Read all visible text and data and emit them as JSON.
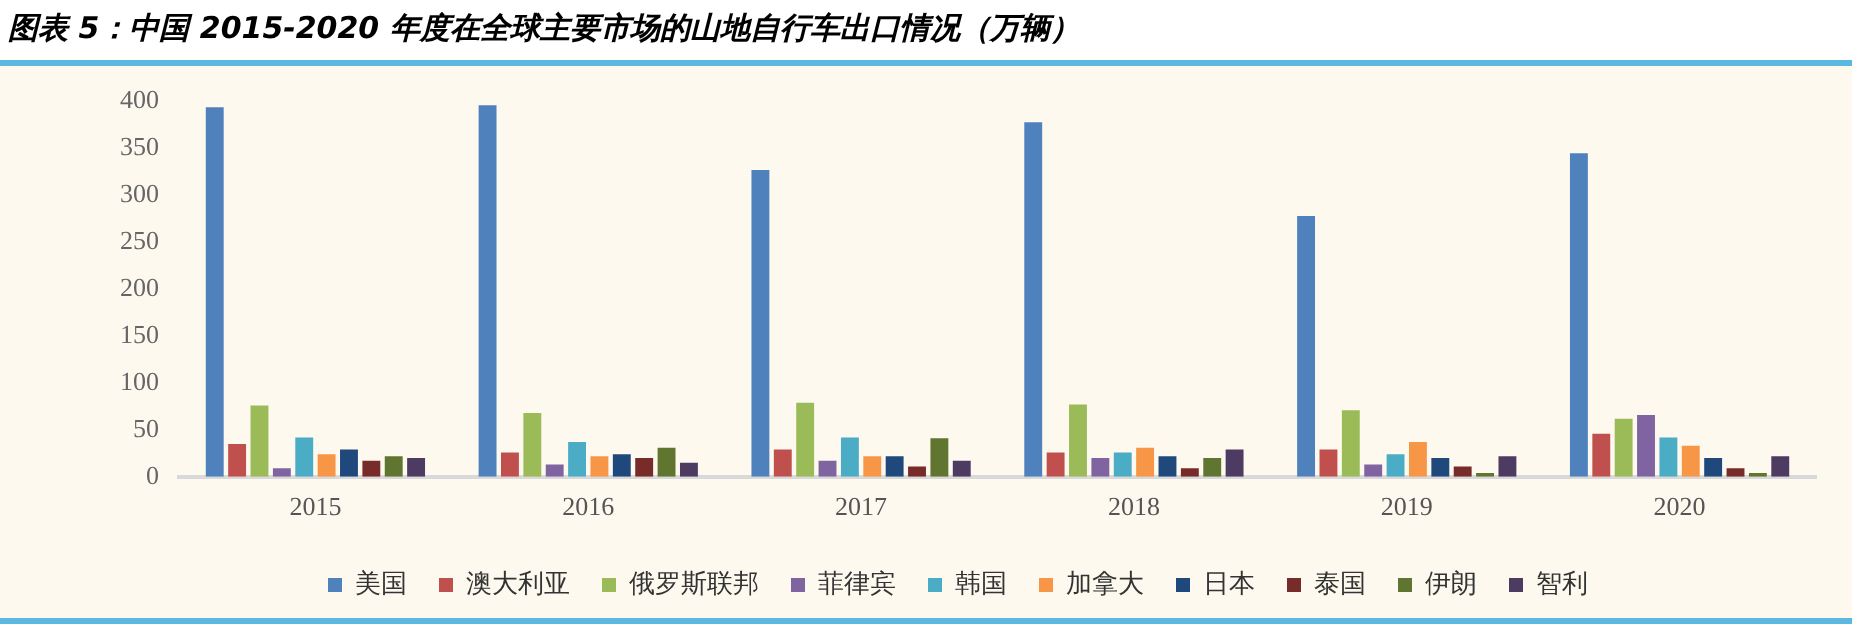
{
  "chart_data": {
    "type": "bar",
    "title": "图表 5：中国 2015-2020 年度在全球主要市场的山地自行车出口情况（万辆）",
    "categories": [
      "2015",
      "2016",
      "2017",
      "2018",
      "2019",
      "2020"
    ],
    "series": [
      {
        "name": "美国",
        "color": "#4f81bd",
        "values": [
          394,
          396,
          327,
          378,
          278,
          345
        ]
      },
      {
        "name": "澳大利亚",
        "color": "#c0504d",
        "values": [
          35,
          26,
          29,
          26,
          29,
          46
        ]
      },
      {
        "name": "俄罗斯联邦",
        "color": "#9bbb59",
        "values": [
          76,
          68,
          79,
          77,
          71,
          62
        ]
      },
      {
        "name": "菲律宾",
        "color": "#8064a2",
        "values": [
          9,
          13,
          17,
          20,
          13,
          66
        ]
      },
      {
        "name": "韩国",
        "color": "#4bacc6",
        "values": [
          42,
          37,
          42,
          26,
          24,
          42
        ]
      },
      {
        "name": "加拿大",
        "color": "#f79646",
        "values": [
          24,
          22,
          22,
          31,
          37,
          33
        ]
      },
      {
        "name": "日本",
        "color": "#1f497d",
        "values": [
          29,
          24,
          22,
          22,
          20,
          20
        ]
      },
      {
        "name": "泰国",
        "color": "#772c2a",
        "values": [
          17,
          20,
          11,
          9,
          11,
          9
        ]
      },
      {
        "name": "伊朗",
        "color": "#5f7530",
        "values": [
          22,
          31,
          41,
          20,
          4,
          4
        ]
      },
      {
        "name": "智利",
        "color": "#4d3b62",
        "values": [
          20,
          15,
          17,
          29,
          22,
          22
        ]
      }
    ],
    "ylim": [
      0,
      400
    ],
    "yticks": [
      0,
      50,
      100,
      150,
      200,
      250,
      300,
      350,
      400
    ],
    "grid": false,
    "legend": "bottom"
  }
}
